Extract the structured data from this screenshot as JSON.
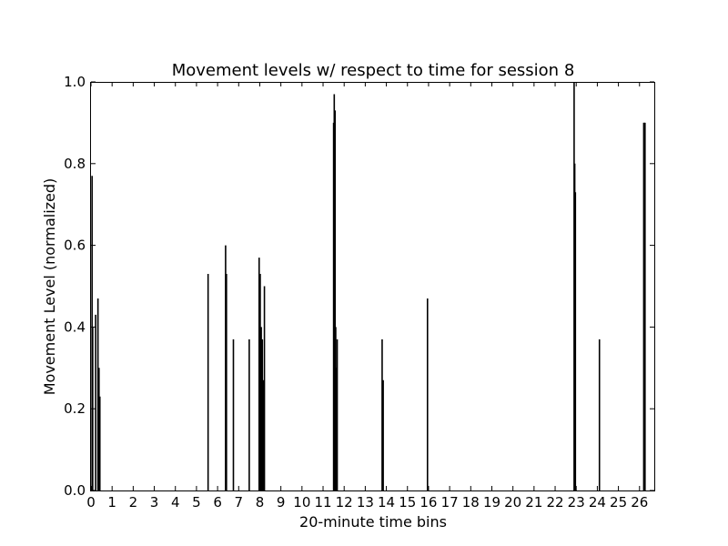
{
  "chart_data": {
    "type": "bar",
    "title": "Movement levels w/ respect to time for session 8",
    "xlabel": "20-minute time bins",
    "ylabel": "Movement Level (normalized)",
    "xlim": [
      0,
      26.7
    ],
    "ylim": [
      0,
      1
    ],
    "xticks": [
      0,
      1,
      2,
      3,
      4,
      5,
      6,
      7,
      8,
      9,
      10,
      11,
      12,
      13,
      14,
      15,
      16,
      17,
      18,
      19,
      20,
      21,
      22,
      23,
      24,
      25,
      26
    ],
    "yticks": [
      0.0,
      0.2,
      0.4,
      0.6,
      0.8,
      1.0
    ],
    "ytick_labels": [
      "0.0",
      "0.2",
      "0.4",
      "0.6",
      "0.8",
      "1.0"
    ],
    "grid": false,
    "color": "#000000",
    "x": [
      0.05,
      0.08,
      0.22,
      0.33,
      0.38,
      0.42,
      5.55,
      6.38,
      6.42,
      6.75,
      7.5,
      7.97,
      8.02,
      8.07,
      8.12,
      8.17,
      8.22,
      11.5,
      11.53,
      11.57,
      11.6,
      11.64,
      11.67,
      13.8,
      13.85,
      15.95,
      22.9,
      22.93,
      22.96,
      24.1,
      26.2,
      26.23,
      26.26
    ],
    "values": [
      0.77,
      0.4,
      0.43,
      0.47,
      0.3,
      0.23,
      0.53,
      0.6,
      0.53,
      0.37,
      0.37,
      0.57,
      0.53,
      0.4,
      0.37,
      0.27,
      0.5,
      0.9,
      0.97,
      0.93,
      0.4,
      0.3,
      0.37,
      0.37,
      0.27,
      0.47,
      1.0,
      0.8,
      0.73,
      0.37,
      0.9,
      0.9,
      0.9
    ]
  }
}
